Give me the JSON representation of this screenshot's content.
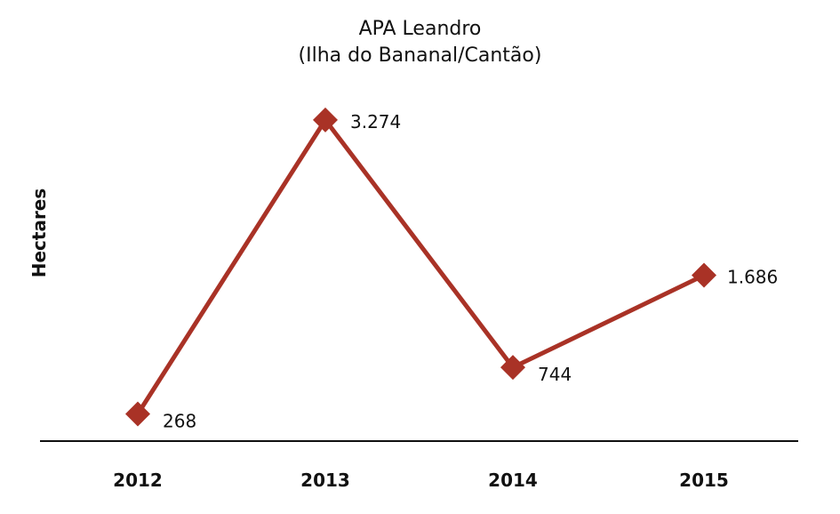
{
  "chart_data": {
    "type": "line",
    "title": [
      "APA Leandro",
      "(Ilha do Bananal/Cantão)"
    ],
    "xlabel": "",
    "ylabel": "Hectares",
    "categories": [
      "2012",
      "2013",
      "2014",
      "2015"
    ],
    "series": [
      {
        "values": [
          268,
          3274,
          744,
          1686
        ],
        "labels": [
          "268",
          "3.274",
          "744",
          "1.686"
        ],
        "color": "#a93226"
      }
    ],
    "ylim": [
      0,
      3500
    ],
    "grid": false,
    "legend": "none"
  }
}
